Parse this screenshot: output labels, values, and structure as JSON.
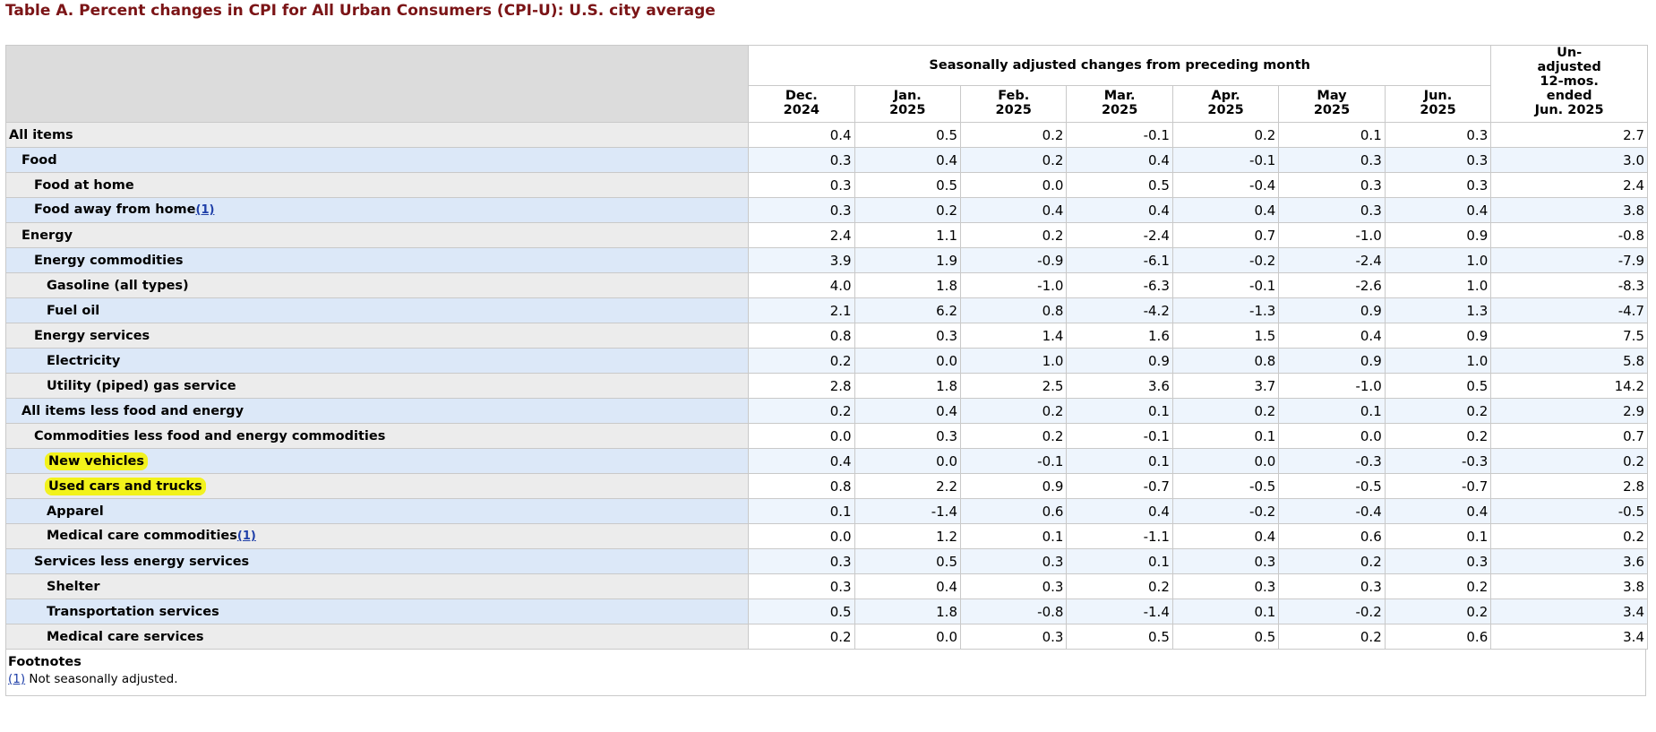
{
  "caption": "Table A. Percent changes in CPI for All Urban Consumers (CPI-U): U.S. city average",
  "header": {
    "group_label": "Seasonally adjusted changes from preceding month",
    "months": [
      [
        "Dec.",
        "2024"
      ],
      [
        "Jan.",
        "2025"
      ],
      [
        "Feb.",
        "2025"
      ],
      [
        "Mar.",
        "2025"
      ],
      [
        "Apr.",
        "2025"
      ],
      [
        "May",
        "2025"
      ],
      [
        "Jun.",
        "2025"
      ]
    ],
    "unadjusted": [
      "Un-",
      "adjusted",
      "12-mos.",
      "ended",
      "Jun. 2025"
    ]
  },
  "rows": [
    {
      "label": "All items",
      "indent": 0,
      "fn": "",
      "values": [
        "0.4",
        "0.5",
        "0.2",
        "-0.1",
        "0.2",
        "0.1",
        "0.3",
        "2.7"
      ]
    },
    {
      "label": "Food",
      "indent": 1,
      "fn": "",
      "values": [
        "0.3",
        "0.4",
        "0.2",
        "0.4",
        "-0.1",
        "0.3",
        "0.3",
        "3.0"
      ]
    },
    {
      "label": "Food at home",
      "indent": 2,
      "fn": "",
      "values": [
        "0.3",
        "0.5",
        "0.0",
        "0.5",
        "-0.4",
        "0.3",
        "0.3",
        "2.4"
      ]
    },
    {
      "label": "Food away from home",
      "indent": 2,
      "fn": "(1)",
      "values": [
        "0.3",
        "0.2",
        "0.4",
        "0.4",
        "0.4",
        "0.3",
        "0.4",
        "3.8"
      ]
    },
    {
      "label": "Energy",
      "indent": 1,
      "fn": "",
      "values": [
        "2.4",
        "1.1",
        "0.2",
        "-2.4",
        "0.7",
        "-1.0",
        "0.9",
        "-0.8"
      ]
    },
    {
      "label": "Energy commodities",
      "indent": 2,
      "fn": "",
      "values": [
        "3.9",
        "1.9",
        "-0.9",
        "-6.1",
        "-0.2",
        "-2.4",
        "1.0",
        "-7.9"
      ]
    },
    {
      "label": "Gasoline (all types)",
      "indent": 3,
      "fn": "",
      "values": [
        "4.0",
        "1.8",
        "-1.0",
        "-6.3",
        "-0.1",
        "-2.6",
        "1.0",
        "-8.3"
      ]
    },
    {
      "label": "Fuel oil",
      "indent": 3,
      "fn": "",
      "values": [
        "2.1",
        "6.2",
        "0.8",
        "-4.2",
        "-1.3",
        "0.9",
        "1.3",
        "-4.7"
      ]
    },
    {
      "label": "Energy services",
      "indent": 2,
      "fn": "",
      "values": [
        "0.8",
        "0.3",
        "1.4",
        "1.6",
        "1.5",
        "0.4",
        "0.9",
        "7.5"
      ]
    },
    {
      "label": "Electricity",
      "indent": 3,
      "fn": "",
      "values": [
        "0.2",
        "0.0",
        "1.0",
        "0.9",
        "0.8",
        "0.9",
        "1.0",
        "5.8"
      ]
    },
    {
      "label": "Utility (piped) gas service",
      "indent": 3,
      "fn": "",
      "values": [
        "2.8",
        "1.8",
        "2.5",
        "3.6",
        "3.7",
        "-1.0",
        "0.5",
        "14.2"
      ]
    },
    {
      "label": "All items less food and energy",
      "indent": 1,
      "fn": "",
      "values": [
        "0.2",
        "0.4",
        "0.2",
        "0.1",
        "0.2",
        "0.1",
        "0.2",
        "2.9"
      ]
    },
    {
      "label": "Commodities less food and energy commodities",
      "indent": 2,
      "fn": "",
      "values": [
        "0.0",
        "0.3",
        "0.2",
        "-0.1",
        "0.1",
        "0.0",
        "0.2",
        "0.7"
      ]
    },
    {
      "label": "New vehicles",
      "indent": 3,
      "fn": "",
      "highlight": true,
      "values": [
        "0.4",
        "0.0",
        "-0.1",
        "0.1",
        "0.0",
        "-0.3",
        "-0.3",
        "0.2"
      ]
    },
    {
      "label": "Used cars and trucks",
      "indent": 3,
      "fn": "",
      "highlight": true,
      "values": [
        "0.8",
        "2.2",
        "0.9",
        "-0.7",
        "-0.5",
        "-0.5",
        "-0.7",
        "2.8"
      ]
    },
    {
      "label": "Apparel",
      "indent": 3,
      "fn": "",
      "values": [
        "0.1",
        "-1.4",
        "0.6",
        "0.4",
        "-0.2",
        "-0.4",
        "0.4",
        "-0.5"
      ]
    },
    {
      "label": "Medical care commodities",
      "indent": 3,
      "fn": "(1)",
      "values": [
        "0.0",
        "1.2",
        "0.1",
        "-1.1",
        "0.4",
        "0.6",
        "0.1",
        "0.2"
      ]
    },
    {
      "label": "Services less energy services",
      "indent": 2,
      "fn": "",
      "values": [
        "0.3",
        "0.5",
        "0.3",
        "0.1",
        "0.3",
        "0.2",
        "0.3",
        "3.6"
      ]
    },
    {
      "label": "Shelter",
      "indent": 3,
      "fn": "",
      "values": [
        "0.3",
        "0.4",
        "0.3",
        "0.2",
        "0.3",
        "0.3",
        "0.2",
        "3.8"
      ]
    },
    {
      "label": "Transportation services",
      "indent": 3,
      "fn": "",
      "values": [
        "0.5",
        "1.8",
        "-0.8",
        "-1.4",
        "0.1",
        "-0.2",
        "0.2",
        "3.4"
      ]
    },
    {
      "label": "Medical care services",
      "indent": 3,
      "fn": "",
      "values": [
        "0.2",
        "0.0",
        "0.3",
        "0.5",
        "0.5",
        "0.2",
        "0.6",
        "3.4"
      ]
    }
  ],
  "footnotes": {
    "heading": "Footnotes",
    "items": [
      {
        "ref": "(1)",
        "text": " Not seasonally adjusted."
      }
    ]
  },
  "colors": {
    "caption": "#7b1416",
    "header_bg": "#dcdcdc",
    "row_gray": "#ececec",
    "row_blue": "#dce8f8",
    "link": "#1f3fa8",
    "highlight": "#f2f21a"
  }
}
